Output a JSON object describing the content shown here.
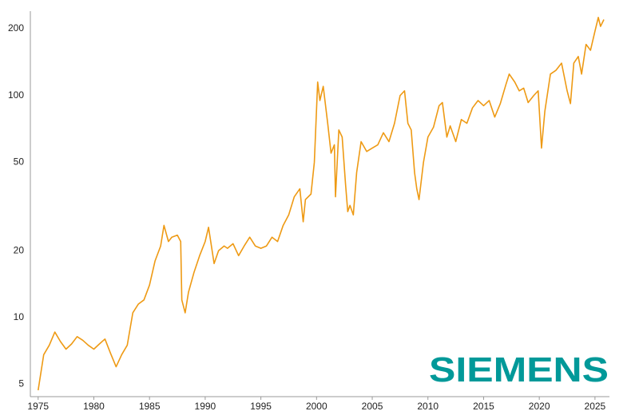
{
  "chart_data": {
    "type": "line",
    "logo": "SIEMENS",
    "color": "#ee9a14",
    "yscale": "log",
    "xlim": [
      1974.3,
      2026.3
    ],
    "xticks": [
      1975,
      1980,
      1985,
      1990,
      1995,
      2000,
      2005,
      2010,
      2015,
      2020,
      2025
    ],
    "ylim": [
      4.4,
      240
    ],
    "yticks": [
      5,
      10,
      20,
      50,
      100,
      200
    ],
    "grid": false,
    "x": [
      1975.0,
      1975.5,
      1976.0,
      1976.5,
      1977.0,
      1977.5,
      1978.0,
      1978.5,
      1979.0,
      1979.5,
      1980.0,
      1980.5,
      1981.0,
      1981.5,
      1982.0,
      1982.5,
      1983.0,
      1983.5,
      1984.0,
      1984.5,
      1985.0,
      1985.5,
      1986.0,
      1986.3,
      1986.7,
      1987.0,
      1987.5,
      1987.8,
      1987.9,
      1988.2,
      1988.5,
      1989.0,
      1989.5,
      1990.0,
      1990.3,
      1990.8,
      1991.2,
      1991.7,
      1992.0,
      1992.5,
      1993.0,
      1993.5,
      1994.0,
      1994.5,
      1995.0,
      1995.5,
      1996.0,
      1996.5,
      1997.0,
      1997.5,
      1998.0,
      1998.5,
      1998.8,
      1999.0,
      1999.5,
      1999.8,
      2000.1,
      2000.3,
      2000.6,
      2001.0,
      2001.3,
      2001.6,
      2001.7,
      2002.0,
      2002.3,
      2002.6,
      2002.8,
      2003.0,
      2003.3,
      2003.6,
      2004.0,
      2004.5,
      2005.0,
      2005.5,
      2006.0,
      2006.5,
      2007.0,
      2007.5,
      2007.9,
      2008.2,
      2008.5,
      2008.8,
      2009.0,
      2009.2,
      2009.6,
      2010.0,
      2010.5,
      2011.0,
      2011.3,
      2011.7,
      2012.0,
      2012.5,
      2013.0,
      2013.5,
      2014.0,
      2014.5,
      2015.0,
      2015.5,
      2016.0,
      2016.5,
      2017.0,
      2017.3,
      2017.8,
      2018.2,
      2018.6,
      2019.0,
      2019.5,
      2019.9,
      2020.2,
      2020.5,
      2021.0,
      2021.5,
      2022.0,
      2022.5,
      2022.8,
      2023.1,
      2023.5,
      2023.8,
      2024.2,
      2024.6,
      2025.0,
      2025.3,
      2025.5,
      2025.8
    ],
    "values": [
      4.7,
      6.8,
      7.5,
      8.6,
      7.8,
      7.2,
      7.6,
      8.2,
      7.9,
      7.5,
      7.2,
      7.6,
      8.0,
      6.9,
      6.0,
      6.8,
      7.5,
      10.5,
      11.5,
      12.0,
      14.0,
      18.0,
      21.0,
      26.0,
      22.0,
      23.0,
      23.5,
      22.0,
      12.0,
      10.5,
      13.0,
      16.0,
      19.0,
      22.0,
      25.5,
      17.5,
      20.0,
      21.0,
      20.5,
      21.5,
      19.0,
      21.0,
      23.0,
      21.0,
      20.5,
      21.0,
      23.0,
      22.0,
      26.0,
      29.0,
      35.0,
      38.0,
      27.0,
      34.0,
      36.0,
      50.0,
      115.0,
      95.0,
      110.0,
      75.0,
      55.0,
      60.0,
      35.0,
      70.0,
      65.0,
      40.0,
      30.0,
      32.0,
      29.0,
      45.0,
      62.0,
      56.0,
      58.0,
      60.0,
      68.0,
      62.0,
      75.0,
      100.0,
      105.0,
      75.0,
      70.0,
      45.0,
      38.0,
      34.0,
      50.0,
      65.0,
      72.0,
      90.0,
      93.0,
      65.0,
      73.0,
      62.0,
      78.0,
      75.0,
      88.0,
      95.0,
      90.0,
      95.0,
      80.0,
      92.0,
      112.0,
      125.0,
      115.0,
      105.0,
      108.0,
      93.0,
      100.0,
      105.0,
      58.0,
      85.0,
      125.0,
      130.0,
      140.0,
      105.0,
      92.0,
      140.0,
      150.0,
      125.0,
      170.0,
      160.0,
      195.0,
      225.0,
      205.0,
      220.0
    ]
  }
}
